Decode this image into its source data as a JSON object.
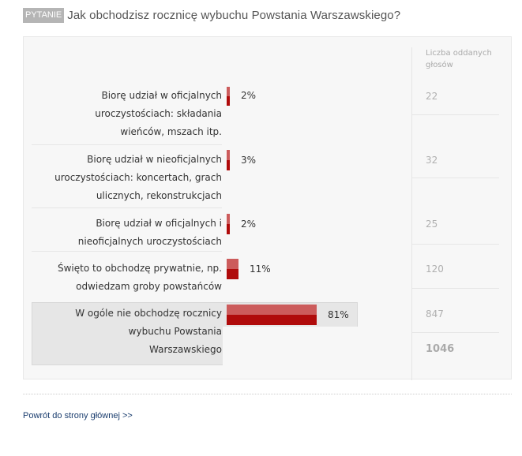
{
  "question": {
    "badge": "PYTANIE",
    "title": "Jak obchodzisz rocznicę wybuchu Powstania Warszawskiego?"
  },
  "table": {
    "votes_header_line1": "Liczba oddanych",
    "votes_header_line2": "głosów",
    "total": "1046"
  },
  "answers": [
    {
      "lines": [
        "Biorę udział w oficjalnych",
        "uroczystościach: składania",
        "wieńców, mszach itp."
      ],
      "percent_label": "2%",
      "percent": 2,
      "votes": "22"
    },
    {
      "lines": [
        "Biorę udział w nieoficjalnych",
        "uroczystościach: koncertach, grach",
        "ulicznych, rekonstrukcjach"
      ],
      "percent_label": "3%",
      "percent": 3,
      "votes": "32"
    },
    {
      "lines": [
        "Biorę udział w oficjalnych i",
        "nieoficjalnych uroczystościach"
      ],
      "percent_label": "2%",
      "percent": 2,
      "votes": "25"
    },
    {
      "lines": [
        "Święto to obchodzę prywatnie, np.",
        "odwiedzam groby powstańców"
      ],
      "percent_label": "11%",
      "percent": 11,
      "votes": "120"
    },
    {
      "lines": [
        "W ogóle nie obchodzę rocznicy",
        "wybuchu Powstania",
        "Warszawskiego"
      ],
      "percent_label": "81%",
      "percent": 81,
      "votes": "847"
    }
  ],
  "footer": {
    "back_link": "Powrót do strony głównej >>"
  },
  "colors": {
    "bar_light": "#cc5c5c",
    "bar_dark": "#b00b0b"
  }
}
